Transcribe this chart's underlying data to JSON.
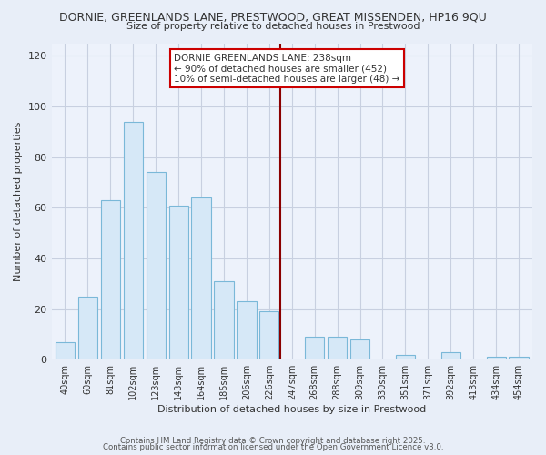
{
  "title": "DORNIE, GREENLANDS LANE, PRESTWOOD, GREAT MISSENDEN, HP16 9QU",
  "subtitle": "Size of property relative to detached houses in Prestwood",
  "xlabel": "Distribution of detached houses by size in Prestwood",
  "ylabel": "Number of detached properties",
  "bar_labels": [
    "40sqm",
    "60sqm",
    "81sqm",
    "102sqm",
    "123sqm",
    "143sqm",
    "164sqm",
    "185sqm",
    "206sqm",
    "226sqm",
    "247sqm",
    "268sqm",
    "288sqm",
    "309sqm",
    "330sqm",
    "351sqm",
    "371sqm",
    "392sqm",
    "413sqm",
    "434sqm",
    "454sqm"
  ],
  "bar_values": [
    7,
    25,
    63,
    94,
    74,
    61,
    64,
    31,
    23,
    19,
    0,
    9,
    9,
    8,
    0,
    2,
    0,
    3,
    0,
    1,
    1
  ],
  "bar_color": "#d6e8f7",
  "bar_edge_color": "#7ab8d8",
  "vline_x_index": 10,
  "vline_color": "#8b0000",
  "annotation_title": "DORNIE GREENLANDS LANE: 238sqm",
  "annotation_line1": "← 90% of detached houses are smaller (452)",
  "annotation_line2": "10% of semi-detached houses are larger (48) →",
  "annotation_box_facecolor": "#ffffff",
  "annotation_box_edgecolor": "#cc0000",
  "ylim": [
    0,
    125
  ],
  "yticks": [
    0,
    20,
    40,
    60,
    80,
    100,
    120
  ],
  "background_color": "#e8eef8",
  "plot_bg_color": "#edf2fb",
  "grid_color": "#c8d0e0",
  "footer1": "Contains HM Land Registry data © Crown copyright and database right 2025.",
  "footer2": "Contains public sector information licensed under the Open Government Licence v3.0."
}
